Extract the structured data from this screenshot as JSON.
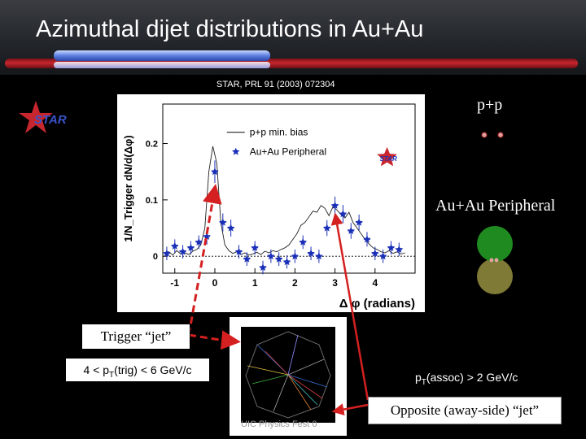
{
  "slide": {
    "title": "Azimuthal dijet distributions in Au+Au",
    "citation": "STAR, PRL 91 (2003) 072304",
    "logo_text": "STAR",
    "pp_label": "p+p",
    "auau_label": "Au+Au Peripheral",
    "trigger_label": "Trigger “jet”",
    "opposite_label": "Opposite (away-side) “jet”",
    "ptrig_main": "4 < p",
    "ptrig_sub": "T",
    "ptrig_rest": "(trig) < 6 GeV/c",
    "passoc_main": "p",
    "passoc_sub": "T",
    "passoc_rest": "(assoc) > 2 GeV/c",
    "event_caption": "UIC Physics Fest 0",
    "colors": {
      "arrow": "#d42020",
      "accent_red": "#c8262e",
      "accent_blue": "#5b7fe0"
    }
  },
  "chart_data": {
    "type": "scatter",
    "xlabel": "Δ φ (radians)",
    "ylabel": "1/N_Trigger dN/d(Δφ)",
    "xlim": [
      -1.3,
      5.0
    ],
    "ylim": [
      -0.03,
      0.27
    ],
    "xticks": [
      -1,
      0,
      1,
      2,
      3,
      4
    ],
    "yticks": [
      0,
      0.1,
      0.2
    ],
    "legend": [
      "p+p min. bias",
      "Au+Au Peripheral"
    ],
    "series": [
      {
        "name": "p+p min. bias",
        "style": "line",
        "x": [
          -1.25,
          -1.15,
          -1.05,
          -0.95,
          -0.85,
          -0.75,
          -0.65,
          -0.55,
          -0.45,
          -0.35,
          -0.25,
          -0.15,
          -0.05,
          0.05,
          0.15,
          0.25,
          0.35,
          0.45,
          0.55,
          0.65,
          0.75,
          0.85,
          0.95,
          1.05,
          1.15,
          1.25,
          1.35,
          1.45,
          1.55,
          1.65,
          1.75,
          1.85,
          1.95,
          2.05,
          2.15,
          2.25,
          2.35,
          2.45,
          2.55,
          2.65,
          2.75,
          2.85,
          2.95,
          3.05,
          3.15,
          3.25,
          3.35,
          3.45,
          3.55,
          3.65,
          3.75,
          3.85,
          3.95,
          4.05,
          4.15,
          4.25,
          4.35,
          4.45,
          4.55,
          4.65,
          4.75
        ],
        "values": [
          0.005,
          0.008,
          0.002,
          0.01,
          0.004,
          0.006,
          0.003,
          0.009,
          0.012,
          0.02,
          0.05,
          0.15,
          0.195,
          0.165,
          0.06,
          0.02,
          0.01,
          0.005,
          0.008,
          0.003,
          0.006,
          0.002,
          0.004,
          0.007,
          0.003,
          0.009,
          0.006,
          0.01,
          0.008,
          0.012,
          0.015,
          0.02,
          0.03,
          0.04,
          0.055,
          0.06,
          0.07,
          0.08,
          0.078,
          0.09,
          0.085,
          0.072,
          0.088,
          0.082,
          0.074,
          0.068,
          0.078,
          0.06,
          0.05,
          0.04,
          0.03,
          0.022,
          0.015,
          0.012,
          0.008,
          0.006,
          0.01,
          0.005,
          0.008,
          0.004,
          0.006
        ]
      },
      {
        "name": "Au+Au Peripheral",
        "style": "markers",
        "x": [
          -1.2,
          -1.0,
          -0.8,
          -0.6,
          -0.4,
          -0.2,
          0.0,
          0.2,
          0.4,
          0.6,
          0.8,
          1.0,
          1.2,
          1.4,
          1.6,
          1.8,
          2.0,
          2.2,
          2.4,
          2.6,
          2.8,
          3.0,
          3.2,
          3.4,
          3.6,
          3.8,
          4.0,
          4.2,
          4.4,
          4.6
        ],
        "values": [
          0.005,
          0.018,
          0.008,
          0.015,
          0.025,
          0.035,
          0.15,
          0.06,
          0.05,
          0.008,
          -0.005,
          0.015,
          -0.02,
          0.0,
          -0.005,
          -0.01,
          0.0,
          0.025,
          0.005,
          0.0,
          0.05,
          0.09,
          0.075,
          0.045,
          0.06,
          0.03,
          0.005,
          0.0,
          0.015,
          0.012
        ],
        "errors": [
          0.012,
          0.012,
          0.012,
          0.012,
          0.012,
          0.014,
          0.02,
          0.016,
          0.015,
          0.012,
          0.012,
          0.012,
          0.012,
          0.012,
          0.012,
          0.012,
          0.012,
          0.012,
          0.012,
          0.012,
          0.014,
          0.016,
          0.016,
          0.014,
          0.014,
          0.013,
          0.012,
          0.012,
          0.012,
          0.012
        ]
      }
    ]
  }
}
